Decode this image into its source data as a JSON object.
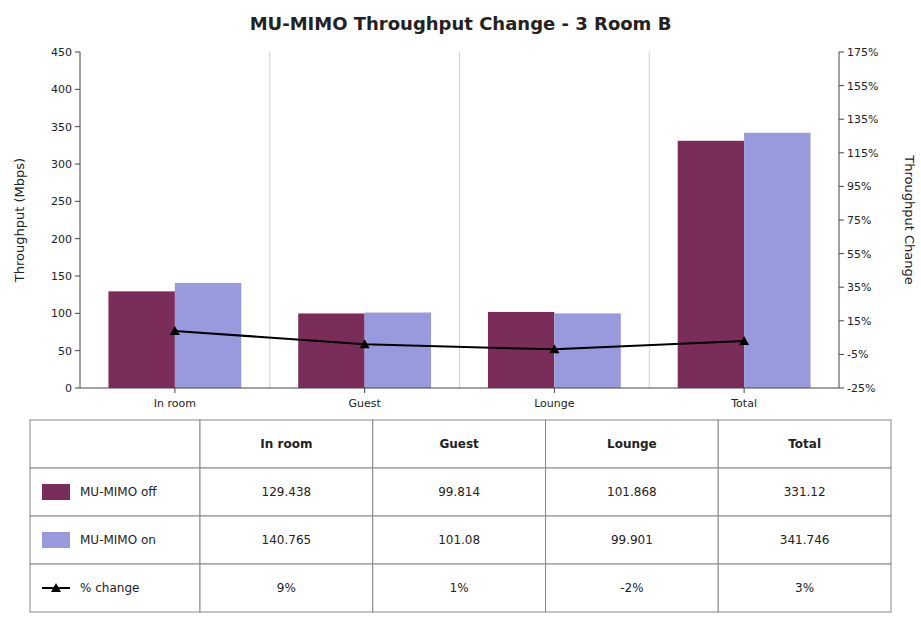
{
  "chart_data": {
    "type": "bar",
    "title": "MU-MIMO Throughput Change - 3 Room B",
    "categories": [
      "In room",
      "Guest",
      "Lounge",
      "Total"
    ],
    "series": [
      {
        "name": "MU-MIMO off",
        "color": "#7B2D5A",
        "values": [
          129.438,
          99.814,
          101.868,
          331.12
        ]
      },
      {
        "name": "MU-MIMO on",
        "color": "#9999DD",
        "values": [
          140.765,
          101.08,
          99.901,
          341.746
        ]
      },
      {
        "name": "% change",
        "type": "line",
        "axis": "y2",
        "color": "#000000",
        "marker": "triangle",
        "values": [
          9,
          1,
          -2,
          3
        ],
        "value_labels": [
          "9%",
          "1%",
          "-2%",
          "3%"
        ]
      }
    ],
    "ylabel": "Throughput (Mbps)",
    "y2label": "Throughput Change",
    "ylim": [
      0,
      450
    ],
    "yticks": [
      0,
      50,
      100,
      150,
      200,
      250,
      300,
      350,
      400,
      450
    ],
    "y2lim": [
      -25,
      175
    ],
    "y2ticks": [
      {
        "value": -25,
        "label": "-25%"
      },
      {
        "value": -5,
        "label": "-5%"
      },
      {
        "value": 15,
        "label": "15%"
      },
      {
        "value": 35,
        "label": "35%"
      },
      {
        "value": 55,
        "label": "55%"
      },
      {
        "value": 75,
        "label": "75%"
      },
      {
        "value": 95,
        "label": "95%"
      },
      {
        "value": 115,
        "label": "115%"
      },
      {
        "value": 135,
        "label": "135%"
      },
      {
        "value": 155,
        "label": "155%"
      },
      {
        "value": 175,
        "label": "175%"
      }
    ],
    "grid": false,
    "legend": "bottom"
  }
}
